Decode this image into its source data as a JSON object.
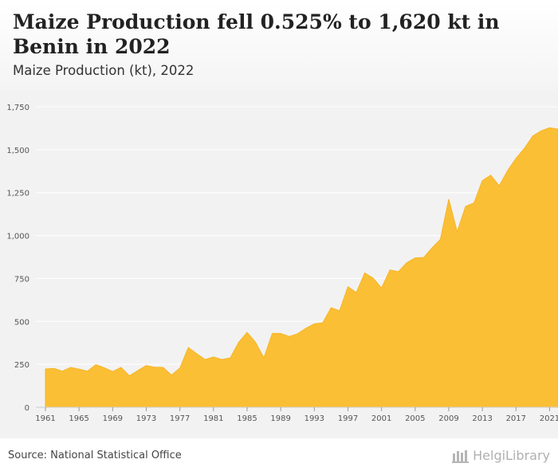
{
  "header": {
    "title": "Maize Production fell 0.525% to 1,620 kt in Benin in 2022",
    "subtitle": "Maize Production (kt), 2022"
  },
  "footer": {
    "source": "Source: National Statistical Office",
    "brand": "HelgiLibrary"
  },
  "colors": {
    "area_fill": "#fbbf35",
    "area_stroke": "#f5b526",
    "plot_background": "#f2f2f2",
    "gridline": "#ffffff",
    "axis_text": "#555555"
  },
  "chart_data": {
    "type": "area",
    "title": "Maize Production fell 0.525% to 1,620 kt in Benin in 2022",
    "subtitle": "Maize Production (kt), 2022",
    "xlabel": "",
    "ylabel": "",
    "grid": true,
    "legend": "none",
    "xlim": [
      1961,
      2022
    ],
    "ylim": [
      0,
      1750
    ],
    "yticks": [
      0,
      250,
      500,
      750,
      1000,
      1250,
      1500,
      1750
    ],
    "ytick_labels": [
      "0",
      "250",
      "500",
      "750",
      "1,000",
      "1,250",
      "1,500",
      "1,750"
    ],
    "xticks": [
      1961,
      1965,
      1969,
      1973,
      1977,
      1981,
      1985,
      1989,
      1993,
      1997,
      2001,
      2005,
      2009,
      2013,
      2017,
      2021
    ],
    "xtick_labels": [
      "1961",
      "1965",
      "1969",
      "1973",
      "1977",
      "1981",
      "1985",
      "1989",
      "1993",
      "1997",
      "2001",
      "2005",
      "2009",
      "2013",
      "2017",
      "2021"
    ],
    "x": [
      1961,
      1962,
      1963,
      1964,
      1965,
      1966,
      1967,
      1968,
      1969,
      1970,
      1971,
      1972,
      1973,
      1974,
      1975,
      1976,
      1977,
      1978,
      1979,
      1980,
      1981,
      1982,
      1983,
      1984,
      1985,
      1986,
      1987,
      1988,
      1989,
      1990,
      1991,
      1992,
      1993,
      1994,
      1995,
      1996,
      1997,
      1998,
      1999,
      2000,
      2001,
      2002,
      2003,
      2004,
      2005,
      2006,
      2007,
      2008,
      2009,
      2010,
      2011,
      2012,
      2013,
      2014,
      2015,
      2016,
      2017,
      2018,
      2019,
      2020,
      2021,
      2022
    ],
    "series": [
      {
        "values": [
          223,
          226,
          210,
          232,
          222,
          210,
          248,
          230,
          208,
          232,
          183,
          214,
          243,
          233,
          232,
          188,
          228,
          348,
          312,
          278,
          293,
          278,
          288,
          378,
          436,
          378,
          288,
          430,
          430,
          412,
          428,
          460,
          486,
          492,
          580,
          562,
          702,
          668,
          782,
          752,
          695,
          800,
          790,
          842,
          870,
          872,
          928,
          978,
          1212,
          1022,
          1170,
          1190,
          1320,
          1352,
          1290,
          1378,
          1450,
          1508,
          1580,
          1610,
          1628,
          1620
        ]
      }
    ]
  }
}
